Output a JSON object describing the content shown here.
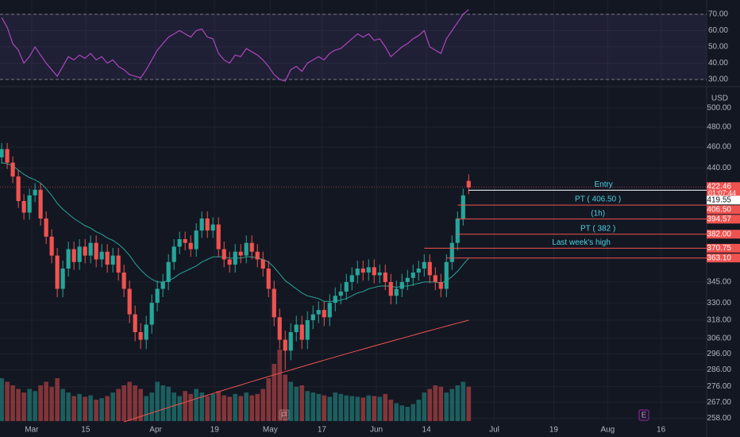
{
  "chart_data": {
    "type": "candlestick",
    "currency": "USD",
    "up_color": "#26a69a",
    "down_color": "#ef5350",
    "xlim": [
      -0.3,
      126.8
    ],
    "xticks": [
      {
        "value": 5.4,
        "label": "Mar"
      },
      {
        "value": 15.1,
        "label": "15"
      },
      {
        "value": 27.7,
        "label": "Apr"
      },
      {
        "value": 38.3,
        "label": "19"
      },
      {
        "value": 48.3,
        "label": "May"
      },
      {
        "value": 57.6,
        "label": "17"
      },
      {
        "value": 67.4,
        "label": "Jun"
      },
      {
        "value": 76.4,
        "label": "14"
      },
      {
        "value": 88.6,
        "label": "Jul"
      },
      {
        "value": 99.3,
        "label": "19"
      },
      {
        "value": 109,
        "label": "Aug"
      },
      {
        "value": 118.6,
        "label": "16"
      }
    ],
    "log_scale": true,
    "ylim": [
      250,
      518
    ],
    "yticks": [
      {
        "value": 500,
        "label": "500.00"
      },
      {
        "value": 480,
        "label": "480.00"
      },
      {
        "value": 460,
        "label": "460.00"
      },
      {
        "value": 440,
        "label": "440.00"
      },
      {
        "value": 345,
        "label": "345.00"
      },
      {
        "value": 330,
        "label": "330.00"
      },
      {
        "value": 318,
        "label": "318.00"
      },
      {
        "value": 306,
        "label": "306.00"
      },
      {
        "value": 296,
        "label": "296.00"
      },
      {
        "value": 286,
        "label": "286.00"
      },
      {
        "value": 276,
        "label": "276.00"
      },
      {
        "value": 267,
        "label": "267.00"
      },
      {
        "value": 258,
        "label": "258.00"
      }
    ],
    "grid": true,
    "open": [
      450,
      458,
      445,
      432,
      410,
      400,
      415,
      420,
      395,
      380,
      365,
      340,
      355,
      370,
      360,
      372,
      365,
      375,
      362,
      368,
      358,
      365,
      352,
      340,
      322,
      310,
      305,
      315,
      330,
      340,
      345,
      360,
      372,
      378,
      375,
      370,
      385,
      395,
      385,
      390,
      370,
      362,
      358,
      368,
      365,
      375,
      368,
      362,
      355,
      340,
      320,
      305,
      298,
      310,
      315,
      305,
      318,
      322,
      325,
      320,
      330,
      335,
      338,
      345,
      350,
      355,
      352,
      356,
      350,
      352,
      345,
      335,
      340,
      345,
      348,
      352,
      355,
      360,
      350,
      345,
      340,
      360,
      375,
      395,
      428
    ],
    "high": [
      464,
      464,
      451,
      438,
      416,
      421,
      426,
      426,
      401,
      386,
      371,
      361,
      376,
      376,
      378,
      378,
      381,
      381,
      374,
      374,
      371,
      371,
      358,
      346,
      328,
      316,
      321,
      336,
      346,
      351,
      366,
      378,
      384,
      384,
      381,
      391,
      401,
      401,
      396,
      396,
      376,
      368,
      374,
      374,
      381,
      381,
      374,
      368,
      361,
      346,
      326,
      311,
      316,
      321,
      321,
      324,
      328,
      331,
      331,
      336,
      341,
      344,
      351,
      356,
      361,
      361,
      362,
      362,
      358,
      358,
      351,
      346,
      351,
      354,
      358,
      361,
      366,
      366,
      356,
      351,
      366,
      381,
      401,
      421,
      434
    ],
    "low": [
      444,
      439,
      426,
      404,
      394,
      394,
      409,
      389,
      374,
      359,
      334,
      334,
      349,
      354,
      354,
      359,
      359,
      356,
      356,
      352,
      352,
      346,
      334,
      316,
      304,
      299,
      299,
      309,
      324,
      334,
      339,
      354,
      366,
      369,
      364,
      364,
      379,
      379,
      379,
      364,
      356,
      352,
      352,
      359,
      359,
      362,
      356,
      349,
      334,
      314,
      299,
      286,
      292,
      304,
      299,
      299,
      312,
      316,
      314,
      314,
      324,
      329,
      332,
      339,
      344,
      346,
      346,
      344,
      344,
      339,
      329,
      329,
      334,
      339,
      342,
      346,
      349,
      344,
      339,
      334,
      334,
      354,
      369,
      389,
      416
    ],
    "close": [
      458,
      445,
      432,
      410,
      400,
      415,
      420,
      395,
      380,
      365,
      340,
      355,
      370,
      360,
      372,
      365,
      375,
      362,
      368,
      358,
      365,
      352,
      340,
      322,
      310,
      305,
      315,
      330,
      340,
      345,
      360,
      372,
      378,
      375,
      370,
      385,
      395,
      385,
      390,
      370,
      362,
      358,
      368,
      365,
      375,
      368,
      362,
      355,
      340,
      320,
      305,
      298,
      310,
      315,
      305,
      318,
      322,
      325,
      320,
      330,
      335,
      338,
      345,
      350,
      355,
      352,
      356,
      350,
      352,
      345,
      335,
      340,
      345,
      348,
      352,
      355,
      360,
      350,
      345,
      340,
      360,
      375,
      395,
      415,
      422
    ],
    "ma_fast": {
      "color": "#26a69a",
      "values": [
        445,
        444,
        442,
        438,
        434,
        431,
        429,
        426,
        421,
        415,
        408,
        403,
        399,
        395,
        392,
        389,
        387,
        384,
        382,
        379,
        377,
        374,
        370,
        365,
        359,
        354,
        350,
        347,
        345,
        345,
        346,
        348,
        351,
        353,
        355,
        357,
        360,
        362,
        364,
        364,
        364,
        363,
        363,
        363,
        364,
        364,
        363,
        362,
        360,
        356,
        351,
        346,
        343,
        340,
        337,
        335,
        334,
        333,
        331,
        331,
        331,
        332,
        333,
        335,
        337,
        338,
        340,
        341,
        342,
        342,
        342,
        341,
        342,
        342,
        343,
        344,
        345,
        345,
        345,
        344,
        346,
        349,
        353,
        358,
        363
      ]
    },
    "ma_slow": {
      "color": "#ef5350",
      "values": [
        null,
        null,
        null,
        null,
        null,
        null,
        null,
        null,
        null,
        null,
        null,
        null,
        null,
        null,
        null,
        null,
        null,
        null,
        null,
        null,
        null,
        null,
        256,
        257,
        258,
        259,
        260,
        261,
        262,
        263,
        264,
        265,
        266,
        267,
        268,
        269,
        270,
        271,
        272,
        273,
        274,
        275,
        276,
        277,
        278,
        279,
        280,
        281,
        282,
        283,
        284,
        285,
        286,
        287,
        288,
        289,
        290,
        291,
        292,
        293,
        294,
        295,
        296,
        297,
        298,
        299,
        300,
        301,
        302,
        303,
        304,
        305,
        306,
        307,
        308,
        309,
        310,
        311,
        312,
        313,
        314,
        315,
        316,
        317,
        318
      ]
    },
    "volume": [
      60,
      55,
      50,
      45,
      40,
      45,
      42,
      50,
      55,
      48,
      60,
      45,
      40,
      35,
      38,
      34,
      36,
      30,
      32,
      35,
      40,
      45,
      50,
      55,
      50,
      45,
      35,
      40,
      55,
      50,
      48,
      40,
      35,
      42,
      38,
      45,
      40,
      35,
      38,
      42,
      36,
      34,
      38,
      35,
      40,
      36,
      38,
      45,
      60,
      80,
      100,
      65,
      55,
      48,
      50,
      42,
      40,
      38,
      36,
      34,
      40,
      38,
      36,
      35,
      34,
      33,
      36,
      35,
      34,
      38,
      30,
      25,
      22,
      20,
      24,
      30,
      40,
      45,
      50,
      48,
      40,
      45,
      50,
      55,
      48
    ],
    "volume_lim": [
      0,
      100
    ],
    "rsi": {
      "color": "#ab47bc",
      "ylim": [
        26.1,
        78.8
      ],
      "yticks": [
        {
          "value": 70,
          "label": "70.00"
        },
        {
          "value": 60,
          "label": "60.00"
        },
        {
          "value": 50,
          "label": "50.00"
        },
        {
          "value": 40,
          "label": "40.00"
        },
        {
          "value": 30,
          "label": "30.00"
        }
      ],
      "band": [
        30,
        70
      ],
      "values": [
        68,
        62,
        52,
        48,
        40,
        44,
        50,
        45,
        40,
        36,
        32,
        38,
        44,
        42,
        45,
        43,
        46,
        42,
        44,
        40,
        42,
        38,
        36,
        33,
        32,
        31,
        36,
        42,
        48,
        52,
        56,
        58,
        60,
        58,
        56,
        60,
        61,
        56,
        55,
        46,
        42,
        40,
        45,
        44,
        49,
        47,
        45,
        42,
        38,
        33,
        30,
        29,
        36,
        38,
        35,
        40,
        42,
        44,
        42,
        46,
        48,
        49,
        52,
        55,
        58,
        56,
        58,
        54,
        55,
        50,
        44,
        47,
        50,
        52,
        55,
        57,
        60,
        50,
        48,
        46,
        55,
        60,
        65,
        70,
        73
      ]
    },
    "last_price": {
      "value": 422.46,
      "price_label": "422.46",
      "countdown": "01:07:44",
      "color": "#ef5350"
    },
    "levels": [
      {
        "value": 419.55,
        "price_label": "419.55",
        "label": "Entry",
        "color": "#ffffff",
        "start": 84
      },
      {
        "value": 406.5,
        "price_label": "406.50",
        "label": "PT ( 406.50 )",
        "color": "#ef5350",
        "start": 82
      },
      {
        "value": 394.57,
        "price_label": "394.57",
        "label": "(1h)",
        "color": "#ef5350",
        "start": 82
      },
      {
        "value": 382,
        "price_label": "382.00",
        "label": "PT ( 382 )",
        "color": "#ef5350",
        "start": 82
      },
      {
        "value": 370.75,
        "price_label": "370.75",
        "label": "Last week's high",
        "color": "#ef5350",
        "start": 76
      },
      {
        "value": 363.1,
        "price_label": "363.10",
        "color": "#ef5350",
        "start": 80
      }
    ],
    "earnings_marker": "E"
  }
}
